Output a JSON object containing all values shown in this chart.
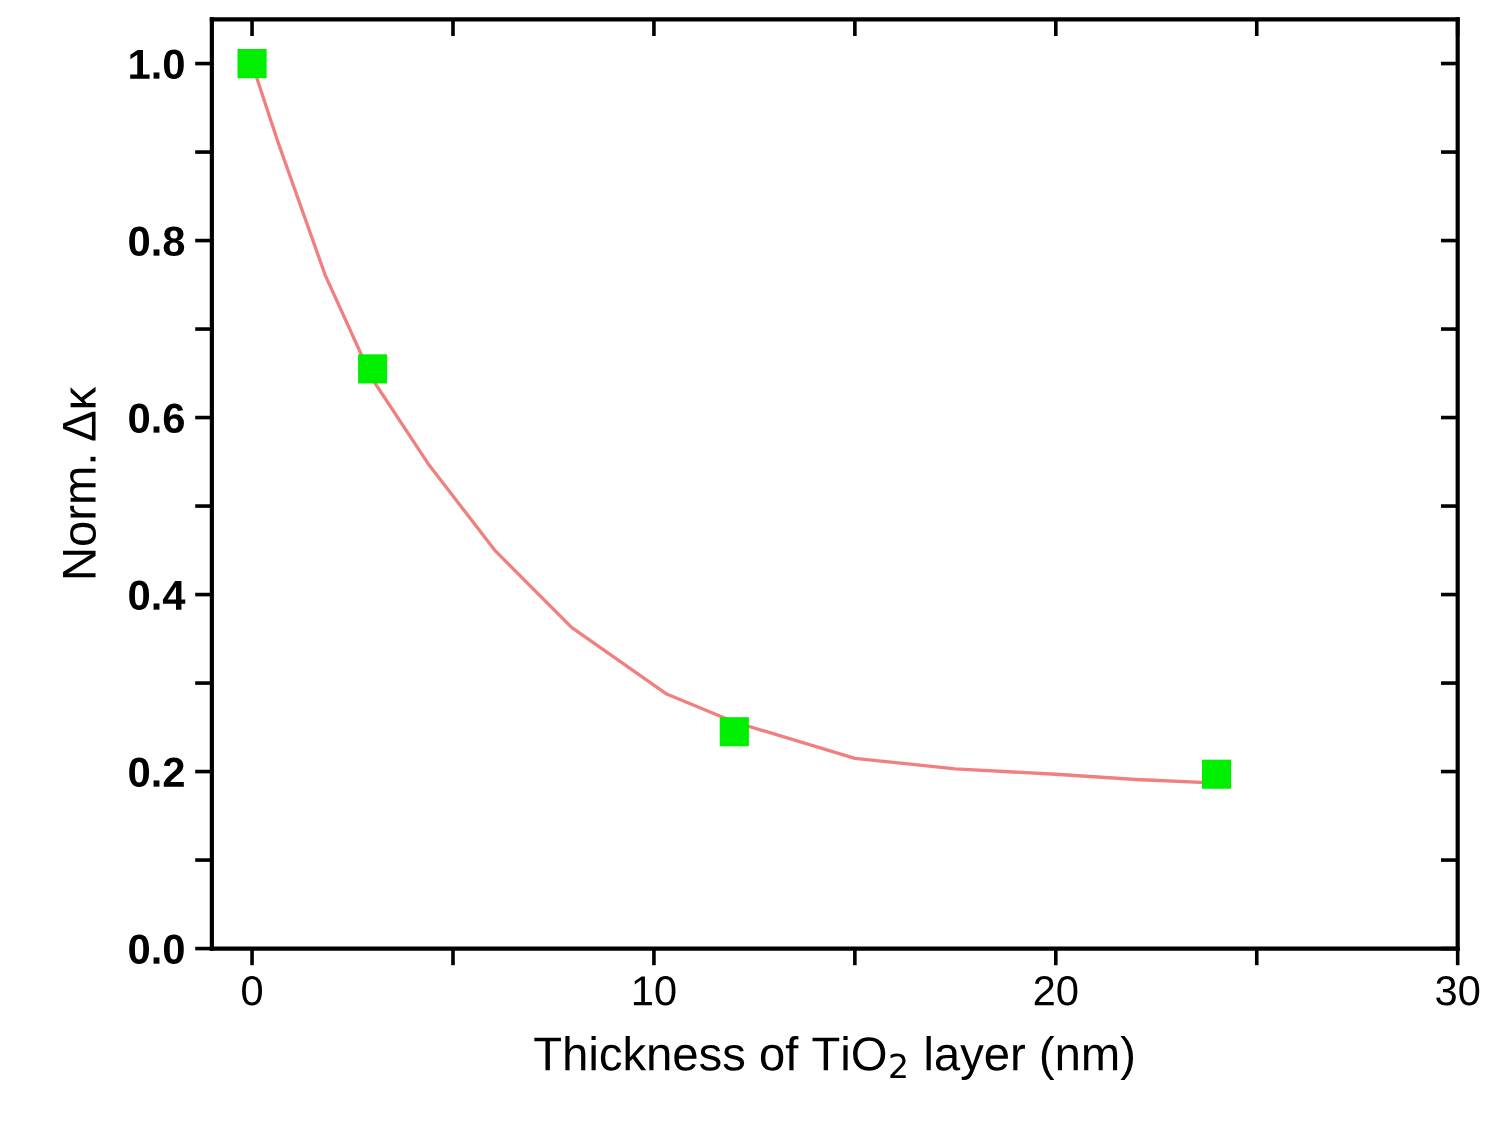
{
  "chart_data": {
    "type": "scatter",
    "xlabel": "Thickness of TiO$_{2}$ layer (nm)",
    "ylabel": "Norm. Δκ",
    "xlim": [
      -1,
      30
    ],
    "ylim": [
      0,
      1.05
    ],
    "xticks": [
      0,
      {
        "value": 5,
        "label": null
      },
      10,
      {
        "value": 15,
        "label": null
      },
      20,
      {
        "value": 25,
        "label": null
      },
      30
    ],
    "yticks": [
      {
        "value": 0,
        "label": "0.0"
      },
      {
        "value": 0.1,
        "label": null
      },
      0.2,
      {
        "value": 0.3,
        "label": null
      },
      0.4,
      {
        "value": 0.5,
        "label": null
      },
      0.6,
      {
        "value": 0.7,
        "label": null
      },
      0.8,
      {
        "value": 0.9,
        "label": null
      },
      {
        "value": 1,
        "label": "1.0"
      }
    ],
    "grid": false,
    "legend": false,
    "series": [
      {
        "type": "line",
        "color": "#f08080",
        "marker": "none",
        "line_style": "solid",
        "x": [
          0,
          0.64,
          1.82,
          3.0,
          4.41,
          6.06,
          7.95,
          10.3,
          12.0,
          15.0,
          17.5,
          20.0,
          22.0,
          24.0
        ],
        "values": [
          1.0,
          0.912,
          0.761,
          0.643,
          0.546,
          0.449,
          0.363,
          0.288,
          0.256,
          0.215,
          0.203,
          0.197,
          0.191,
          0.187
        ]
      },
      {
        "color": "#00ee00",
        "marker": "square",
        "x": [
          0,
          3,
          12,
          24
        ],
        "values": [
          1.0,
          0.655,
          0.245,
          0.197
        ]
      }
    ]
  }
}
